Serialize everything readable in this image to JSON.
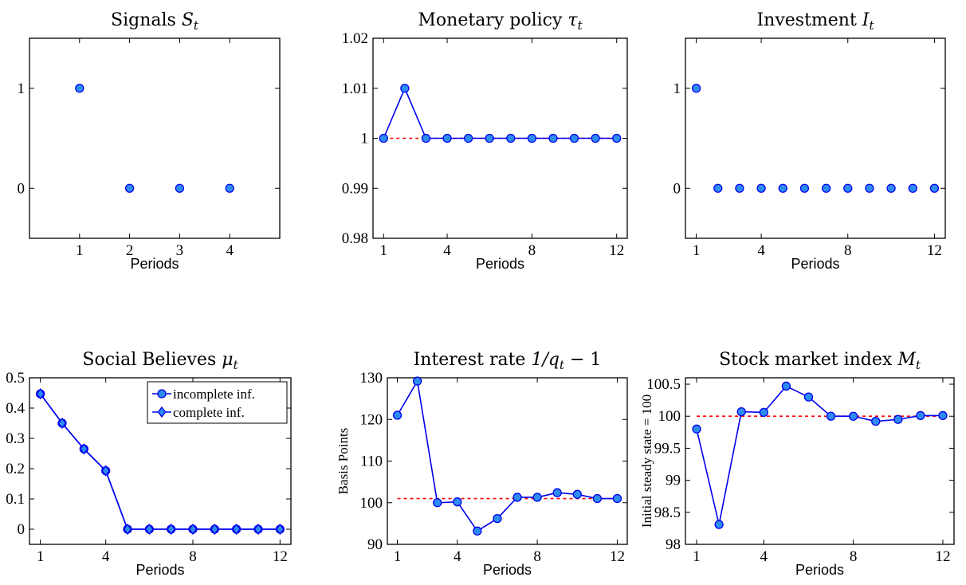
{
  "colors": {
    "series_line": "#0000ee",
    "marker_fill": "#2e8cf0",
    "marker_stroke": "#0000ee",
    "reference": "#ff0000"
  },
  "chart_data": [
    {
      "type": "scatter",
      "title": "Signals St",
      "title_main": "Signals ",
      "title_math": "S",
      "title_sub": "t",
      "xlabel": "Periods",
      "ylabel": "",
      "xlim": [
        0,
        5
      ],
      "ylim": [
        -0.5,
        1.5
      ],
      "xticks": [
        1,
        2,
        3,
        4
      ],
      "yticks": [
        0,
        1
      ],
      "grid": false,
      "series": [
        {
          "x": [
            1,
            2,
            3,
            4
          ],
          "values": [
            1,
            0,
            0,
            0
          ],
          "marker": "circle",
          "line": false
        }
      ]
    },
    {
      "type": "line",
      "title": "Monetary policy τt",
      "title_main": "Monetary policy ",
      "title_math": "τ",
      "title_sub": "t",
      "xlabel": "Periods",
      "ylabel": "",
      "xlim": [
        0.5,
        12.5
      ],
      "ylim": [
        0.98,
        1.02
      ],
      "xticks": [
        1,
        4,
        8,
        12
      ],
      "yticks": [
        0.98,
        0.99,
        1,
        1.01,
        1.02
      ],
      "ytick_labels": [
        "0.98",
        "0.99",
        "1",
        "1.01",
        "1.02"
      ],
      "grid": false,
      "reference": {
        "value": 1.0,
        "x_range": [
          1,
          12
        ]
      },
      "series": [
        {
          "x": [
            1,
            2,
            3,
            4,
            5,
            6,
            7,
            8,
            9,
            10,
            11,
            12
          ],
          "values": [
            1,
            1.01,
            1,
            1,
            1,
            1,
            1,
            1,
            1,
            1,
            1,
            1
          ],
          "marker": "circle",
          "line": true
        }
      ]
    },
    {
      "type": "scatter",
      "title": "Investment It",
      "title_main": "Investment ",
      "title_math": "I",
      "title_sub": "t",
      "xlabel": "Periods",
      "ylabel": "",
      "xlim": [
        0.5,
        12.5
      ],
      "ylim": [
        -0.5,
        1.5
      ],
      "xticks": [
        1,
        4,
        8,
        12
      ],
      "yticks": [
        0,
        1
      ],
      "grid": false,
      "series": [
        {
          "x": [
            1,
            2,
            3,
            4,
            5,
            6,
            7,
            8,
            9,
            10,
            11,
            12
          ],
          "values": [
            1,
            0,
            0,
            0,
            0,
            0,
            0,
            0,
            0,
            0,
            0,
            0
          ],
          "marker": "circle",
          "line": false
        }
      ]
    },
    {
      "type": "line",
      "title": "Social Believes μt",
      "title_main": "Social Believes ",
      "title_math": "μ",
      "title_sub": "t",
      "xlabel": "Periods",
      "ylabel": "",
      "xlim": [
        0.5,
        12.5
      ],
      "ylim": [
        -0.05,
        0.5
      ],
      "xticks": [
        1,
        4,
        8,
        12
      ],
      "yticks": [
        0,
        0.1,
        0.2,
        0.3,
        0.4,
        0.5
      ],
      "ytick_labels": [
        "0",
        "0.1",
        "0.2",
        "0.3",
        "0.4",
        "0.5"
      ],
      "grid": false,
      "legend": {
        "placement": "top-right",
        "entries": [
          "incomplete inf.",
          "complete inf."
        ]
      },
      "series": [
        {
          "name": "incomplete inf.",
          "x": [
            1,
            2,
            3,
            4,
            5,
            6,
            7,
            8,
            9,
            10,
            11,
            12
          ],
          "values": [
            0.447,
            0.35,
            0.265,
            0.193,
            0,
            0,
            0,
            0,
            0,
            0,
            0,
            0
          ],
          "marker": "circle",
          "line": true
        },
        {
          "name": "complete inf.",
          "x": [
            1,
            2,
            3,
            4,
            5,
            6,
            7,
            8,
            9,
            10,
            11,
            12
          ],
          "values": [
            0.447,
            0.35,
            0.265,
            0.193,
            0,
            0,
            0,
            0,
            0,
            0,
            0,
            0
          ],
          "marker": "diamond",
          "line": true
        }
      ]
    },
    {
      "type": "line",
      "title": "Interest rate 1/qt − 1",
      "title_main": "Interest rate ",
      "title_math": "1/q",
      "title_sub": "t",
      "title_tail": " − 1",
      "xlabel": "Periods",
      "ylabel": "Basis Points",
      "xlim": [
        0.5,
        12.5
      ],
      "ylim": [
        90,
        130
      ],
      "xticks": [
        1,
        4,
        8,
        12
      ],
      "yticks": [
        90,
        100,
        110,
        120,
        130
      ],
      "ytick_labels": [
        "90",
        "100",
        "110",
        "120",
        "130"
      ],
      "grid": false,
      "reference": {
        "value": 101,
        "x_range": [
          1,
          12
        ]
      },
      "series": [
        {
          "x": [
            1,
            2,
            3,
            4,
            5,
            6,
            7,
            8,
            9,
            10,
            11,
            12
          ],
          "values": [
            121,
            129.2,
            100,
            100.2,
            93.2,
            96.2,
            101.3,
            101.3,
            102.4,
            102,
            101,
            101
          ],
          "marker": "circle",
          "line": true
        }
      ]
    },
    {
      "type": "line",
      "title": "Stock market index Mt",
      "title_main": "Stock market index ",
      "title_math": "M",
      "title_sub": "t",
      "xlabel": "Periods",
      "ylabel": "Initial steady state = 100",
      "xlim": [
        0.5,
        12.5
      ],
      "ylim": [
        98,
        100.6
      ],
      "xticks": [
        1,
        4,
        8,
        12
      ],
      "yticks": [
        98,
        98.5,
        99,
        99.5,
        100,
        100.5
      ],
      "ytick_labels": [
        "98",
        "98.5",
        "99",
        "99.5",
        "100",
        "100.5"
      ],
      "grid": false,
      "reference": {
        "value": 100,
        "x_range": [
          1,
          12
        ]
      },
      "series": [
        {
          "x": [
            1,
            2,
            3,
            4,
            5,
            6,
            7,
            8,
            9,
            10,
            11,
            12
          ],
          "values": [
            99.8,
            98.31,
            100.07,
            100.06,
            100.47,
            100.3,
            100,
            100,
            99.92,
            99.95,
            100.01,
            100.01
          ],
          "marker": "circle",
          "line": true
        }
      ]
    }
  ]
}
